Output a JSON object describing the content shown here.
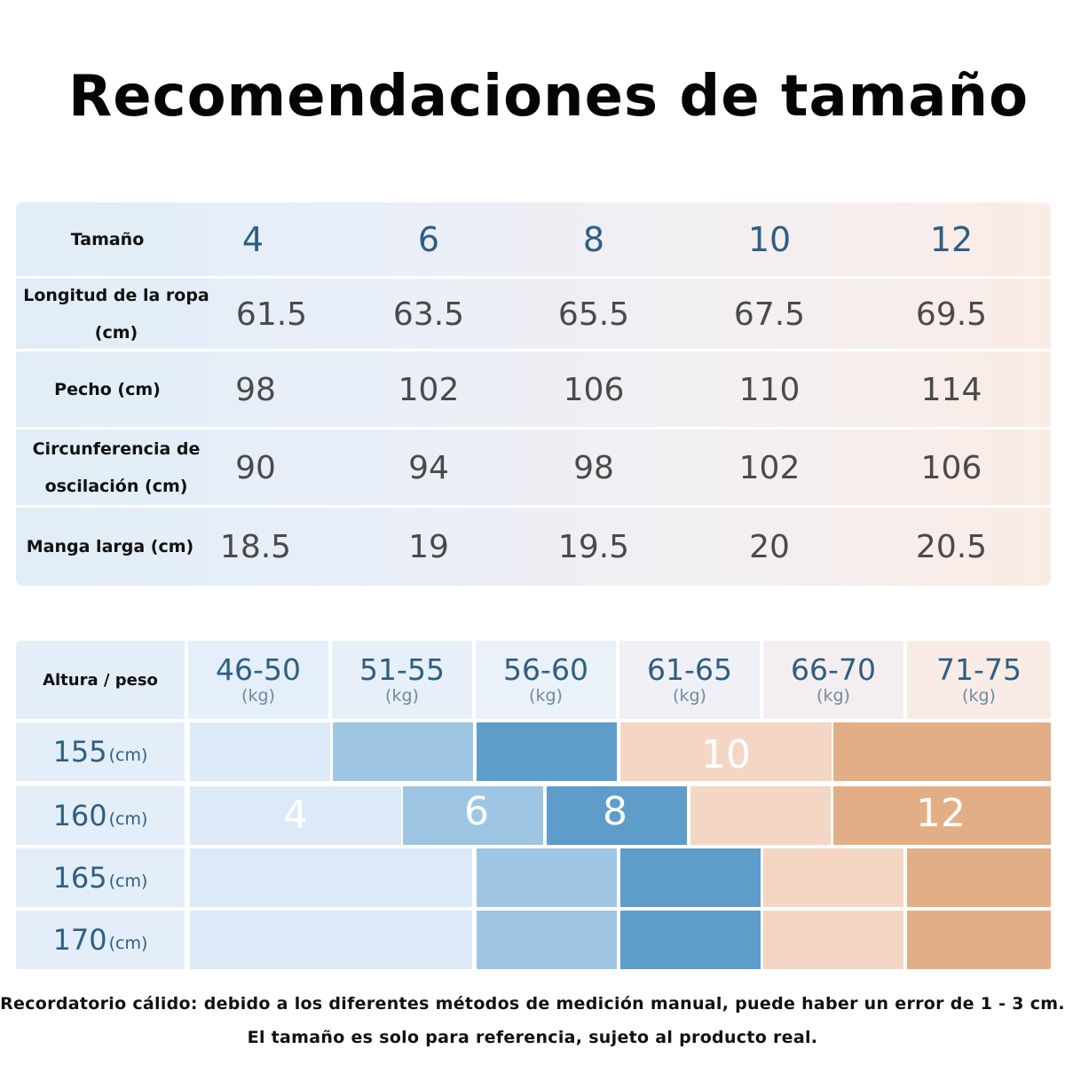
{
  "title": "Recomendaciones de tamaño",
  "size_table": {
    "headers": [
      "Tamaño",
      "4",
      "6",
      "8",
      "10",
      "12"
    ],
    "rows": [
      {
        "label_line1": "Longitud de la ropa",
        "label_line2": "(cm)",
        "values": [
          "61.5",
          "63.5",
          "65.5",
          "67.5",
          "69.5"
        ]
      },
      {
        "label_line1": "Pecho (cm)",
        "label_line2": "",
        "values": [
          "98",
          "102",
          "106",
          "110",
          "114"
        ]
      },
      {
        "label_line1": "Circunferencia de",
        "label_line2": "oscilación (cm)",
        "values": [
          "90",
          "94",
          "98",
          "102",
          "106"
        ]
      },
      {
        "label_line1": "Manga larga (cm)",
        "label_line2": "",
        "values": [
          "18.5",
          "19",
          "19.5",
          "20",
          "20.5"
        ]
      }
    ]
  },
  "height_weight": {
    "corner_label": "Altura / peso",
    "columns": [
      {
        "range": "46-50",
        "unit": "(kg)"
      },
      {
        "range": "51-55",
        "unit": "(kg)"
      },
      {
        "range": "56-60",
        "unit": "(kg)"
      },
      {
        "range": "61-65",
        "unit": "(kg)"
      },
      {
        "range": "66-70",
        "unit": "(kg)"
      },
      {
        "range": "71-75",
        "unit": "(kg)"
      }
    ],
    "rows": [
      {
        "height": "155",
        "unit": "(cm)"
      },
      {
        "height": "160",
        "unit": "(cm)"
      },
      {
        "height": "165",
        "unit": "(cm)"
      },
      {
        "height": "170",
        "unit": "(cm)"
      }
    ],
    "size_marks": [
      "4",
      "6",
      "8",
      "10",
      "12"
    ],
    "colors": {
      "size_4": "#dceaf7",
      "size_6": "#9ec6e4",
      "size_8": "#5e9cca",
      "size_10": "#f3d7c4",
      "size_12": "#e2ae86"
    }
  },
  "notes": {
    "line1": "Recordatorio cálido: debido a los diferentes métodos de medición manual, puede haber un error de 1 - 3 cm.",
    "line2": "El tamaño es solo para referencia, sujeto al producto real."
  }
}
